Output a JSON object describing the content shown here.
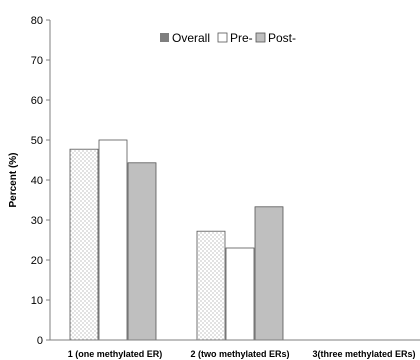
{
  "chart_data": {
    "type": "bar",
    "title": "",
    "xlabel": "",
    "ylabel": "Percent  (%)",
    "ylim": [
      0,
      80
    ],
    "yticks": [
      0,
      10,
      20,
      30,
      40,
      50,
      60,
      70,
      80
    ],
    "grid": false,
    "legend_position": "top",
    "categories": [
      "1 (one methylated ER)",
      "2 (two methylated ERs)",
      "3(three methylated ERs)"
    ],
    "series": [
      {
        "name": "Overall",
        "values": [
          47.7,
          27.2,
          null
        ],
        "style": "dotted"
      },
      {
        "name": "Pre-",
        "values": [
          50.0,
          23.0,
          null
        ],
        "style": "white"
      },
      {
        "name": "Post-",
        "values": [
          44.3,
          33.3,
          null
        ],
        "style": "gray"
      }
    ]
  },
  "colors": {
    "overall_fill": "#ffffff",
    "overall_dots": "#9a9a9a",
    "pre_fill": "#ffffff",
    "post_fill": "#bfbfbf",
    "legend_overall": "#7f7f7f",
    "axis": "#7f7f7f",
    "bar_stroke": "#555555"
  }
}
